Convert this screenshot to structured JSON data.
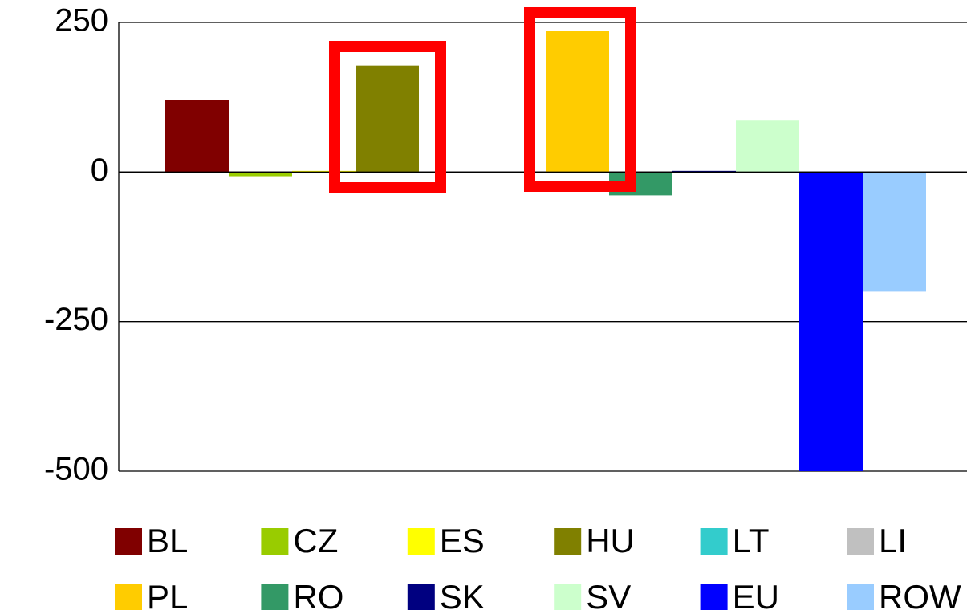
{
  "chart_data": {
    "type": "bar",
    "categories": [
      null
    ],
    "series": [
      {
        "name": "BL",
        "color": "#800000",
        "values": [
          120
        ]
      },
      {
        "name": "CZ",
        "color": "#99cc00",
        "values": [
          -7
        ]
      },
      {
        "name": "ES",
        "color": "#ffff00",
        "values": [
          2
        ]
      },
      {
        "name": "HU",
        "color": "#808000",
        "values": [
          178
        ]
      },
      {
        "name": "LT",
        "color": "#33cccc",
        "values": [
          -2
        ]
      },
      {
        "name": "LI",
        "color": "#c0c0c0",
        "values": [
          0
        ]
      },
      {
        "name": "PL",
        "color": "#ffcc00",
        "values": [
          236
        ]
      },
      {
        "name": "RO",
        "color": "#339966",
        "values": [
          -39
        ]
      },
      {
        "name": "SK",
        "color": "#000080",
        "values": [
          2
        ]
      },
      {
        "name": "SV",
        "color": "#ccffcc",
        "values": [
          86
        ]
      },
      {
        "name": "EU",
        "color": "#0000ff",
        "values": [
          -500
        ]
      },
      {
        "name": "ROW",
        "color": "#99ccff",
        "values": [
          -200
        ]
      }
    ],
    "ylim": [
      -500,
      250
    ],
    "yticks": [
      -500,
      -250,
      0,
      250
    ],
    "grid": true,
    "legend": "bottom"
  }
}
